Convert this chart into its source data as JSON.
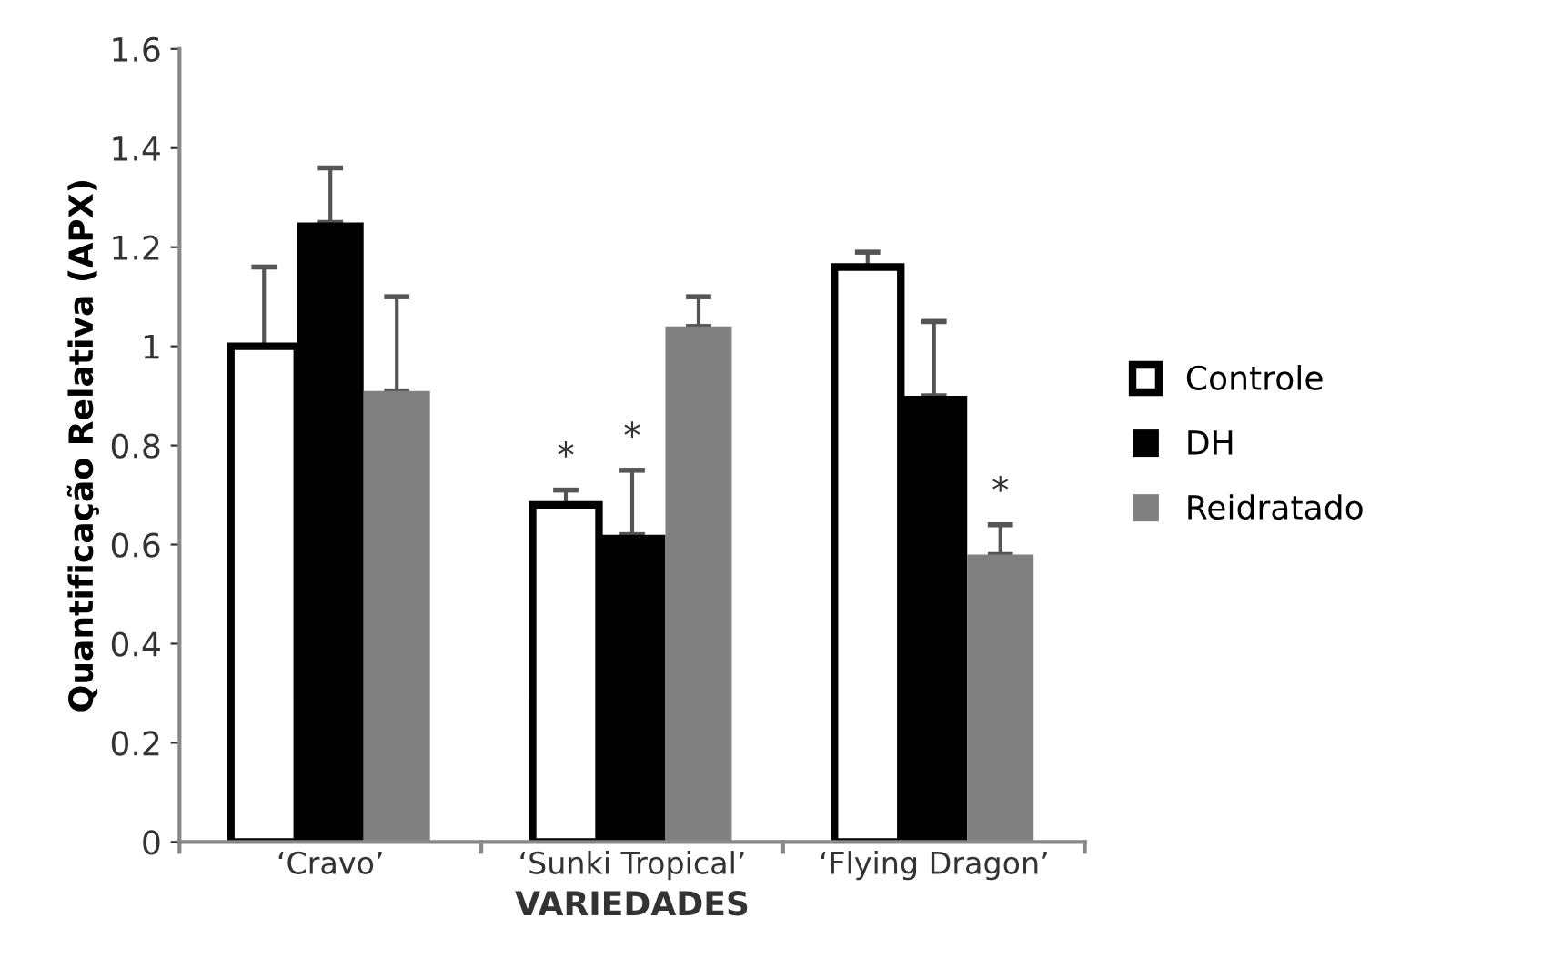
{
  "chart_data": {
    "type": "bar",
    "xlabel": "VARIEDADES",
    "ylabel": "Quantificação Relativa (APX)",
    "categories": [
      "‘Cravo’",
      "‘Sunki Tropical’",
      "‘Flying Dragon’"
    ],
    "series": [
      {
        "name": "Controle",
        "color": "#ffffff",
        "values": [
          1.0,
          0.68,
          1.16
        ],
        "errors": [
          [
            1.0,
            1.16
          ],
          [
            0.68,
            0.71
          ],
          [
            1.16,
            1.19
          ]
        ]
      },
      {
        "name": "DH",
        "color": "#000000",
        "values": [
          1.25,
          0.62,
          0.9
        ],
        "errors": [
          [
            1.25,
            1.36
          ],
          [
            0.62,
            0.75
          ],
          [
            0.9,
            1.05
          ]
        ]
      },
      {
        "name": "Reidratado",
        "color": "#808080",
        "values": [
          0.91,
          1.04,
          0.58
        ],
        "errors": [
          [
            0.91,
            1.1
          ],
          [
            1.04,
            1.1
          ],
          [
            0.58,
            0.64
          ]
        ]
      }
    ],
    "ylim": [
      0,
      1.6
    ],
    "yticks": [
      0,
      0.2,
      0.4,
      0.6,
      0.8,
      1,
      1.2,
      1.4,
      1.6
    ],
    "annotations": [
      {
        "text": "*",
        "x": "‘Sunki Tropical’",
        "y": 0.71
      },
      {
        "text": "*",
        "x": "‘Sunki Tropical’",
        "y": 0.75
      },
      "*"
    ],
    "grid": false,
    "legend": "right"
  }
}
